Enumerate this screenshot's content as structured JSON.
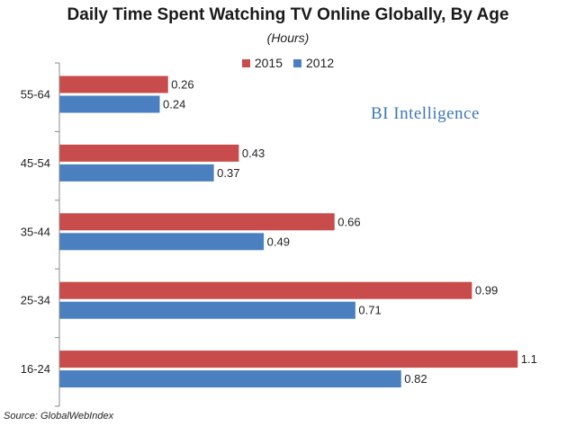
{
  "chart_data": {
    "type": "bar",
    "orientation": "horizontal",
    "title": "Daily Time Spent Watching TV Online Globally, By Age",
    "subtitle": "(Hours)",
    "categories": [
      "55-64",
      "45-54",
      "35-44",
      "25-34",
      "16-24"
    ],
    "series": [
      {
        "name": "2015",
        "color": "#c94c4c",
        "values": [
          0.26,
          0.43,
          0.66,
          0.99,
          1.1
        ],
        "labels": [
          "0.26",
          "0.43",
          "0.66",
          "0.99",
          "1.1"
        ]
      },
      {
        "name": "2012",
        "color": "#4a80c0",
        "values": [
          0.24,
          0.37,
          0.49,
          0.71,
          0.82
        ],
        "labels": [
          "0.24",
          "0.37",
          "0.49",
          "0.71",
          "0.82"
        ]
      }
    ],
    "legend": [
      "2015",
      "2012"
    ],
    "legend_position": "top",
    "xlim": [
      0,
      1.2
    ],
    "grid": false,
    "watermark": "BI Intelligence",
    "source": "Source: GlobalWebIndex"
  }
}
